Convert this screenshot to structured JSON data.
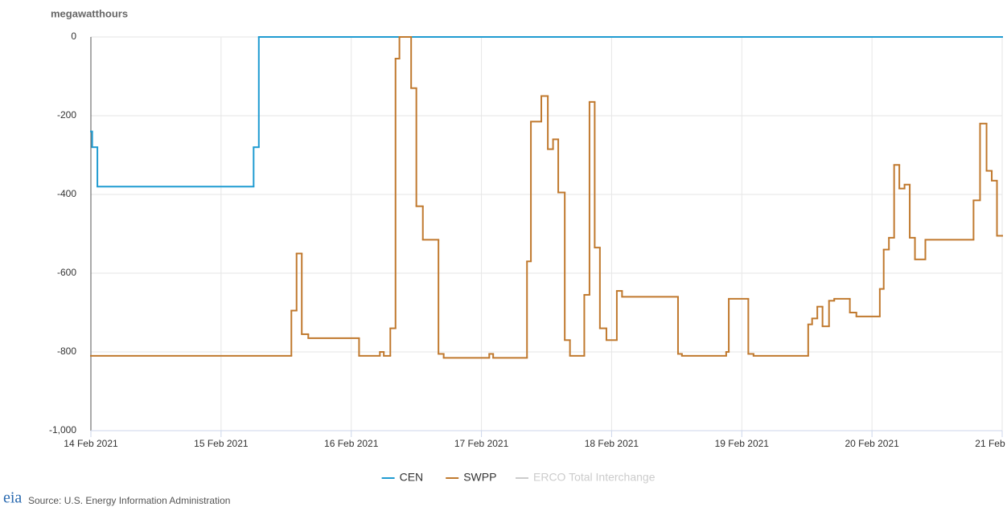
{
  "chart_data": {
    "type": "line",
    "step": true,
    "y_label": "megawatthours",
    "xlim": [
      0,
      7
    ],
    "xticks": [
      {
        "value": 0,
        "label": "14 Feb 2021"
      },
      {
        "value": 1,
        "label": "15 Feb 2021"
      },
      {
        "value": 2,
        "label": "16 Feb 2021"
      },
      {
        "value": 3,
        "label": "17 Feb 2021"
      },
      {
        "value": 4,
        "label": "18 Feb 2021"
      },
      {
        "value": 5,
        "label": "19 Feb 2021"
      },
      {
        "value": 6,
        "label": "20 Feb 2021"
      },
      {
        "value": 7,
        "label": "21 Feb 2021"
      }
    ],
    "ylim": [
      -1000,
      0
    ],
    "yticks": [
      0,
      -200,
      -400,
      -600,
      -800,
      {
        "value": -1000,
        "label": "-1,000"
      }
    ],
    "grid": true,
    "legend": "bottom",
    "series": [
      {
        "name": "CEN",
        "color": "#1f9bd1",
        "visible": true,
        "x": [
          0,
          0.01,
          0.05,
          1.25,
          1.29,
          7
        ],
        "values": [
          -240,
          -280,
          -380,
          -280,
          0,
          0
        ]
      },
      {
        "name": "SWPP",
        "color": "#c0792e",
        "visible": true,
        "x": [
          0,
          1.54,
          1.58,
          1.62,
          1.67,
          2.06,
          2.22,
          2.25,
          2.3,
          2.34,
          2.37,
          2.46,
          2.5,
          2.55,
          2.67,
          2.71,
          3.06,
          3.09,
          3.35,
          3.38,
          3.46,
          3.51,
          3.55,
          3.59,
          3.64,
          3.68,
          3.79,
          3.83,
          3.87,
          3.91,
          3.96,
          4.04,
          4.08,
          4.51,
          4.54,
          4.88,
          4.9,
          5.05,
          5.09,
          5.51,
          5.54,
          5.58,
          5.62,
          5.67,
          5.71,
          5.83,
          5.88,
          6.06,
          6.09,
          6.13,
          6.17,
          6.21,
          6.25,
          6.29,
          6.33,
          6.41,
          6.78,
          6.83,
          6.88,
          6.92,
          6.96,
          7
        ],
        "values": [
          -810,
          -695,
          -550,
          -755,
          -765,
          -810,
          -800,
          -810,
          -740,
          -55,
          0,
          -130,
          -430,
          -515,
          -805,
          -815,
          -805,
          -815,
          -570,
          -215,
          -150,
          -285,
          -260,
          -395,
          -770,
          -810,
          -655,
          -165,
          -535,
          -740,
          -770,
          -645,
          -660,
          -805,
          -810,
          -800,
          -665,
          -805,
          -810,
          -730,
          -715,
          -685,
          -735,
          -670,
          -665,
          -700,
          -710,
          -640,
          -540,
          -510,
          -325,
          -385,
          -375,
          -510,
          -565,
          -515,
          -415,
          -220,
          -340,
          -365,
          -505,
          -505
        ]
      },
      {
        "name": "ERCO Total Interchange",
        "color": "#cccccc",
        "visible": false,
        "x": [],
        "values": []
      }
    ]
  },
  "footer": {
    "logo": "eia",
    "source": "Source: U.S. Energy Information Administration"
  }
}
